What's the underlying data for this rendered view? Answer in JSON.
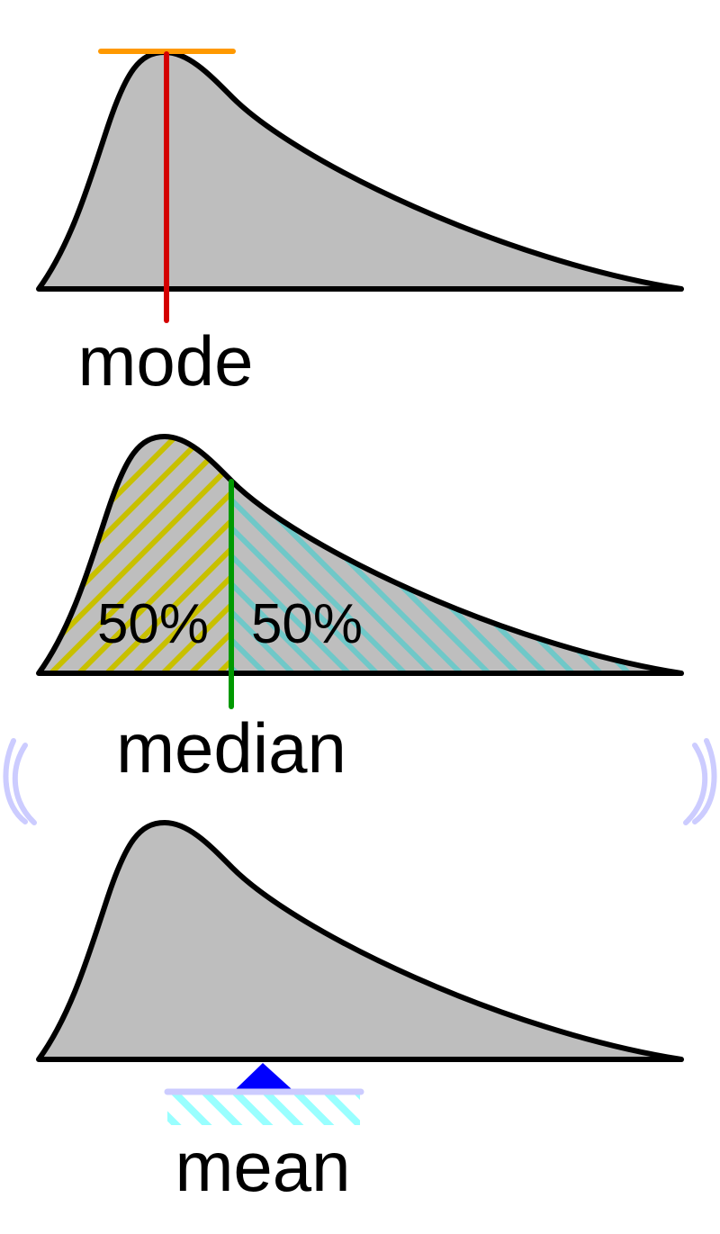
{
  "labels": {
    "mode": "mode",
    "median": "median",
    "mean": "mean",
    "left_share": "50%",
    "right_share": "50%"
  },
  "colors": {
    "fill": "#bebebe",
    "outline": "#000000",
    "mode_marker": "#d40000",
    "peak_line": "#ff9900",
    "median_marker": "#009900",
    "left_hatch": "#c8c000",
    "right_hatch": "#70c8c8",
    "fulcrum": "#0000ff",
    "beam": "#ccccff",
    "ground_hatch": "#99ffff",
    "wobble": "#ccccff"
  }
}
